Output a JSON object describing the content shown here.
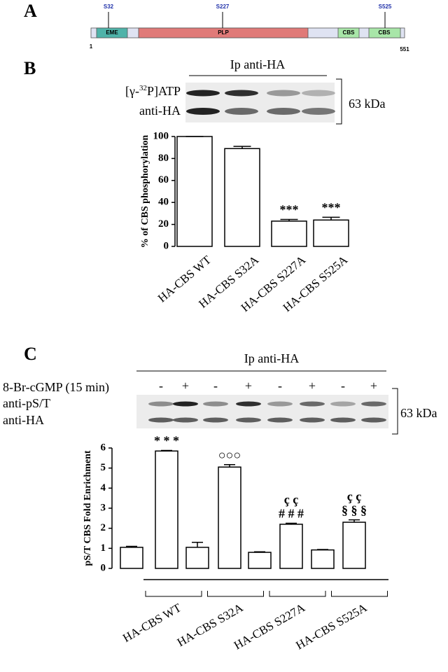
{
  "panel_a": {
    "label": "A",
    "domains": [
      "EME",
      "PLP",
      "CBS",
      "CBS"
    ],
    "sites": [
      "S32",
      "S227",
      "S525"
    ],
    "start": "1",
    "end": "551"
  },
  "panel_b": {
    "label": "B",
    "ip_label": "Ip anti-HA",
    "row_labels": [
      [
        "[γ-",
        "32",
        "P]ATP"
      ],
      [
        "anti-HA"
      ]
    ],
    "size_label": "63 kDa"
  },
  "panel_c": {
    "label": "C",
    "ip_label": "Ip anti-HA",
    "treatment_label": "8-Br-cGMP (15 min)",
    "treatment_signs": [
      "-",
      "+",
      "-",
      "+",
      "-",
      "+",
      "-",
      "+"
    ],
    "row_labels": [
      "anti-pS/T",
      "anti-HA"
    ],
    "size_label": "63 kDa"
  },
  "chart_data": [
    {
      "type": "bar",
      "y_label": "% of CBS phosphorylation",
      "categories": [
        "HA-CBS WT",
        "HA-CBS S32A",
        "HA-CBS S227A",
        "HA-CBS S525A"
      ],
      "values": [
        100,
        89,
        23,
        24
      ],
      "errors": [
        0,
        2,
        1.5,
        2.5
      ],
      "annotations": [
        [],
        [],
        [
          "***"
        ],
        [
          "***"
        ]
      ],
      "color": "#ffffff",
      "ylim": [
        0,
        100
      ],
      "yticks": [
        0,
        20,
        40,
        60,
        80,
        100
      ]
    },
    {
      "type": "grouped_bar",
      "y_label": "pS/T CBS Fold Enrichment",
      "groups": [
        "HA-CBS WT",
        "HA-CBS S32A",
        "HA-CBS S227A",
        "HA-CBS S525A"
      ],
      "values": [
        1.05,
        5.85,
        1.05,
        5.05,
        0.8,
        2.2,
        0.92,
        2.3
      ],
      "errors": [
        0.05,
        0.03,
        0.25,
        0.12,
        0.03,
        0.05,
        0.02,
        0.12
      ],
      "annotations": [
        [],
        [
          "* * *"
        ],
        [],
        [
          "○○○"
        ],
        [],
        [
          "ç ç",
          "# # #"
        ],
        [],
        [
          "ç ç",
          "§ § §"
        ]
      ],
      "color": "#ffffff",
      "ylim": [
        0,
        6
      ],
      "yticks": [
        0,
        1,
        2,
        3,
        4,
        5,
        6
      ]
    }
  ]
}
